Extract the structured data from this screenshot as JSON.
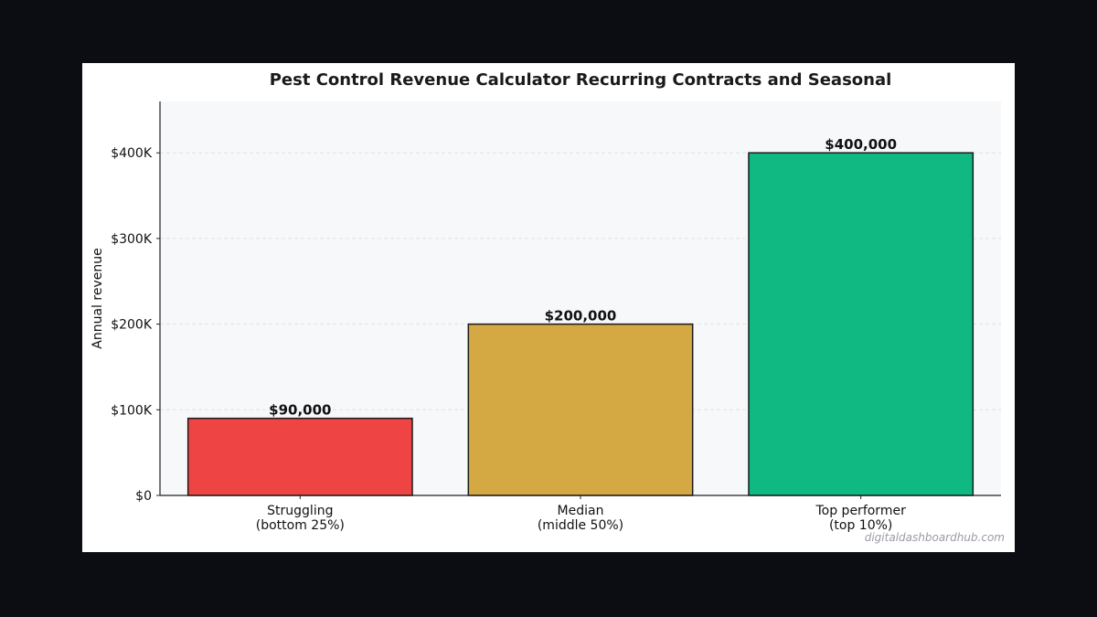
{
  "chart_data": {
    "type": "bar",
    "title": "Pest Control Revenue Calculator  Recurring Contracts and Seasonal",
    "xlabel": "",
    "ylabel": "Annual revenue",
    "categories": [
      [
        "Struggling",
        "(bottom 25%)"
      ],
      [
        "Median",
        "(middle 50%)"
      ],
      [
        "Top performer",
        "(top 10%)"
      ]
    ],
    "values": [
      90000,
      200000,
      400000
    ],
    "value_labels": [
      "$90,000",
      "$200,000",
      "$400,000"
    ],
    "bar_colors": [
      "#ef4444",
      "#d4a843",
      "#10b981"
    ],
    "ylim": [
      0,
      460000
    ],
    "yticks": [
      0,
      100000,
      200000,
      300000,
      400000
    ],
    "ytick_labels": [
      "$0",
      "$100K",
      "$200K",
      "$300K",
      "$400K"
    ],
    "grid": "horizontal dashed",
    "plot_background": "#f7f8fa"
  },
  "watermark": "digitaldashboardhub.com"
}
